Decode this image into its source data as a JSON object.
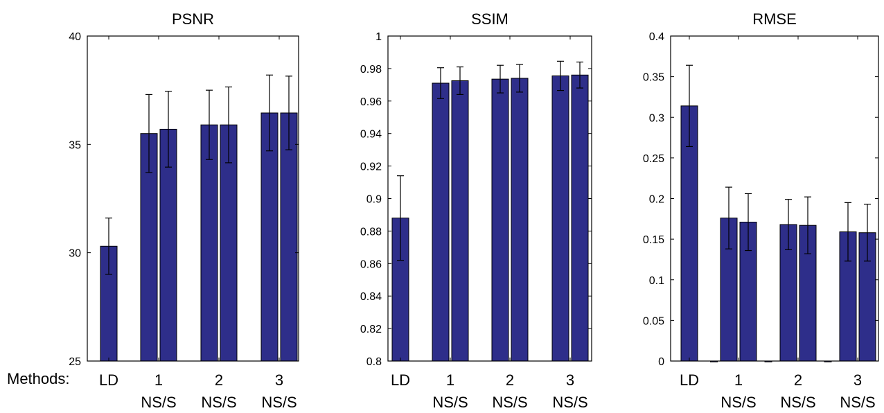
{
  "x_axis_row_label": "Methods:",
  "colors": {
    "bar_fill": "#2e2e8a",
    "bar_stroke": "#000000",
    "axis": "#000000"
  },
  "chart_data": [
    {
      "type": "bar",
      "title": "PSNR",
      "xlabel": "",
      "ylabel": "",
      "ylim": [
        25,
        40
      ],
      "yticks": [
        25,
        30,
        35,
        40
      ],
      "ytick_labels": [
        "25",
        "30",
        "35",
        "40"
      ],
      "group_labels": [
        {
          "top": "LD",
          "bottom": ""
        },
        {
          "top": "1",
          "bottom": "NS/S"
        },
        {
          "top": "2",
          "bottom": "NS/S"
        },
        {
          "top": "3",
          "bottom": "NS/S"
        }
      ],
      "bars": [
        {
          "group": 0,
          "slot": "single",
          "value": 30.3,
          "err": 1.3
        },
        {
          "group": 1,
          "slot": "left",
          "value": 35.5,
          "err": 1.8
        },
        {
          "group": 1,
          "slot": "right",
          "value": 35.7,
          "err": 1.75
        },
        {
          "group": 2,
          "slot": "left",
          "value": 35.9,
          "err": 1.6
        },
        {
          "group": 2,
          "slot": "right",
          "value": 35.9,
          "err": 1.75
        },
        {
          "group": 3,
          "slot": "left",
          "value": 36.45,
          "err": 1.75
        },
        {
          "group": 3,
          "slot": "right",
          "value": 36.45,
          "err": 1.7
        }
      ]
    },
    {
      "type": "bar",
      "title": "SSIM",
      "xlabel": "",
      "ylabel": "",
      "ylim": [
        0.8,
        1.0
      ],
      "yticks": [
        0.8,
        0.82,
        0.84,
        0.86,
        0.88,
        0.9,
        0.92,
        0.94,
        0.96,
        0.98,
        1.0
      ],
      "ytick_labels": [
        "0.8",
        "0.82",
        "0.84",
        "0.86",
        "0.88",
        "0.9",
        "0.92",
        "0.94",
        "0.96",
        "0.98",
        "1"
      ],
      "group_labels": [
        {
          "top": "LD",
          "bottom": ""
        },
        {
          "top": "1",
          "bottom": "NS/S"
        },
        {
          "top": "2",
          "bottom": "NS/S"
        },
        {
          "top": "3",
          "bottom": "NS/S"
        }
      ],
      "bars": [
        {
          "group": 0,
          "slot": "single",
          "value": 0.888,
          "err": 0.026
        },
        {
          "group": 1,
          "slot": "left",
          "value": 0.971,
          "err": 0.0095
        },
        {
          "group": 1,
          "slot": "right",
          "value": 0.9725,
          "err": 0.0085
        },
        {
          "group": 2,
          "slot": "left",
          "value": 0.9735,
          "err": 0.0085
        },
        {
          "group": 2,
          "slot": "right",
          "value": 0.974,
          "err": 0.0085
        },
        {
          "group": 3,
          "slot": "left",
          "value": 0.9755,
          "err": 0.009
        },
        {
          "group": 3,
          "slot": "right",
          "value": 0.976,
          "err": 0.008
        }
      ]
    },
    {
      "type": "bar",
      "title": "RMSE",
      "xlabel": "",
      "ylabel": "",
      "ylim": [
        0,
        0.4
      ],
      "yticks": [
        0,
        0.05,
        0.1,
        0.15,
        0.2,
        0.25,
        0.3,
        0.35,
        0.4
      ],
      "ytick_labels": [
        "0",
        "0.05",
        "0.1",
        "0.15",
        "0.2",
        "0.25",
        "0.3",
        "0.35",
        "0.4"
      ],
      "group_labels": [
        {
          "top": "LD",
          "bottom": ""
        },
        {
          "top": "1",
          "bottom": "NS/S"
        },
        {
          "top": "2",
          "bottom": "NS/S"
        },
        {
          "top": "3",
          "bottom": "NS/S"
        }
      ],
      "bars": [
        {
          "group": 0,
          "slot": "single",
          "value": 0.314,
          "err": 0.05
        },
        {
          "group": 0.5,
          "slot": "zero",
          "value": 0,
          "err": 0
        },
        {
          "group": 1,
          "slot": "left",
          "value": 0.176,
          "err": 0.038
        },
        {
          "group": 1,
          "slot": "right",
          "value": 0.171,
          "err": 0.035
        },
        {
          "group": 1.5,
          "slot": "zero",
          "value": 0,
          "err": 0
        },
        {
          "group": 2,
          "slot": "left",
          "value": 0.168,
          "err": 0.031
        },
        {
          "group": 2,
          "slot": "right",
          "value": 0.167,
          "err": 0.035
        },
        {
          "group": 2.5,
          "slot": "zero",
          "value": 0,
          "err": 0
        },
        {
          "group": 3,
          "slot": "left",
          "value": 0.159,
          "err": 0.036
        },
        {
          "group": 3,
          "slot": "right",
          "value": 0.158,
          "err": 0.035
        }
      ]
    }
  ]
}
